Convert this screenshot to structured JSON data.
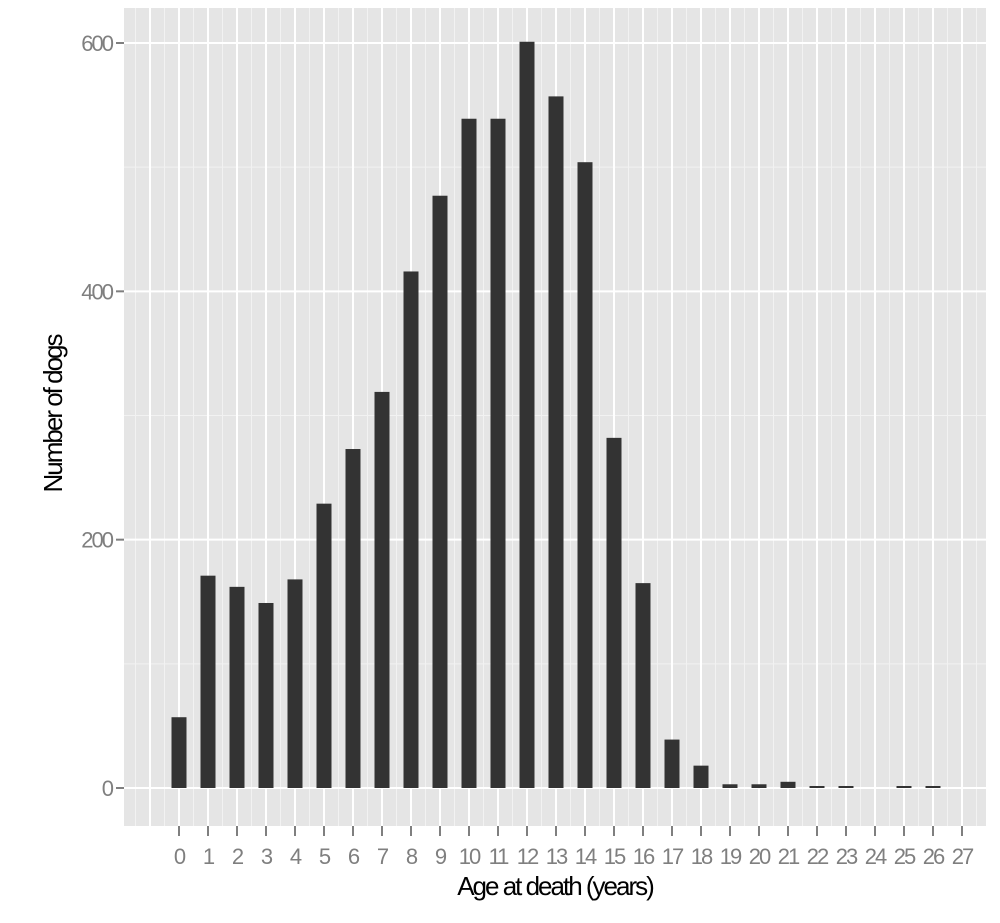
{
  "chart_data": {
    "type": "bar",
    "title": "",
    "xlabel": "Age at death (years)",
    "ylabel": "Number of dogs",
    "categories": [
      "0",
      "1",
      "2",
      "3",
      "4",
      "5",
      "6",
      "7",
      "8",
      "9",
      "10",
      "11",
      "12",
      "13",
      "14",
      "15",
      "16",
      "17",
      "18",
      "19",
      "20",
      "21",
      "22",
      "23",
      "24",
      "25",
      "26",
      "27"
    ],
    "values": [
      57,
      171,
      162,
      149,
      168,
      229,
      273,
      319,
      416,
      477,
      539,
      539,
      601,
      557,
      504,
      282,
      165,
      39,
      18,
      3,
      3,
      5,
      1,
      1,
      0,
      1,
      1,
      0
    ],
    "ylim": [
      -60,
      630
    ],
    "yticks": [
      0,
      200,
      400,
      600
    ],
    "grid": true,
    "legend": "none",
    "colors": {
      "bar": "#333333",
      "panel": "#e5e5e5",
      "grid": "#ffffff"
    }
  }
}
